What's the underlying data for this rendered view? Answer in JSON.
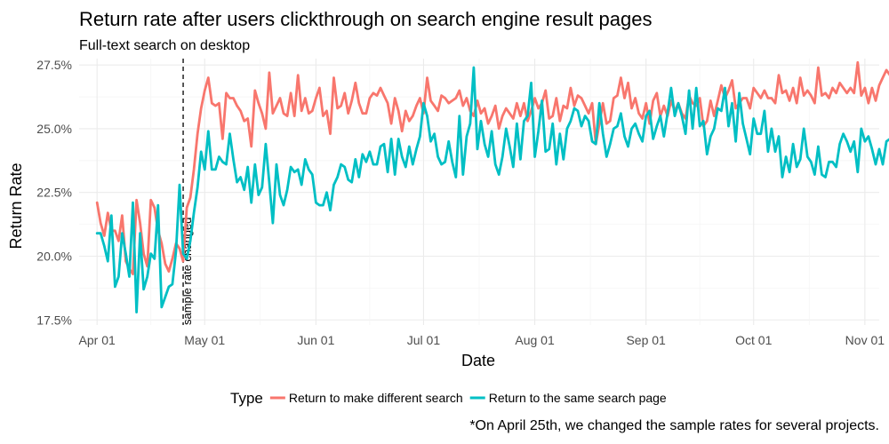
{
  "chart_data": {
    "type": "line",
    "title": "Return rate after users clickthrough on search engine result pages",
    "subtitle": "Full-text search on desktop",
    "xlabel": "Date",
    "ylabel": "Return Rate",
    "x_ticks": [
      "Apr 01",
      "May 01",
      "Jun 01",
      "Jul 01",
      "Aug 01",
      "Sep 01",
      "Oct 01",
      "Nov 01"
    ],
    "y_ticks": [
      "17.5%",
      "20.0%",
      "22.5%",
      "25.0%",
      "27.5%"
    ],
    "xlim": [
      "2017-03-27",
      "2017-11-05"
    ],
    "ylim": [
      0.173,
      0.2775
    ],
    "grid": true,
    "legend": {
      "title": "Type",
      "position": "bottom"
    },
    "annotation": {
      "date": "2017-04-25",
      "label": "sample rate changed",
      "style": "dashed vertical line"
    },
    "caption": "*On April 25th, we changed the sample rates for several projects.",
    "start_date": "2017-04-01",
    "series": [
      {
        "name": "Return to make different search",
        "color": "#F8766D",
        "values": [
          0.221,
          0.213,
          0.208,
          0.217,
          0.21,
          0.21,
          0.206,
          0.216,
          0.198,
          0.195,
          0.193,
          0.222,
          0.213,
          0.201,
          0.196,
          0.222,
          0.219,
          0.21,
          0.205,
          0.197,
          0.194,
          0.199,
          0.205,
          0.203,
          0.198,
          0.219,
          0.223,
          0.234,
          0.248,
          0.258,
          0.265,
          0.27,
          0.26,
          0.259,
          0.26,
          0.246,
          0.264,
          0.262,
          0.262,
          0.259,
          0.257,
          0.253,
          0.254,
          0.243,
          0.265,
          0.26,
          0.256,
          0.25,
          0.272,
          0.256,
          0.259,
          0.262,
          0.256,
          0.255,
          0.264,
          0.255,
          0.271,
          0.257,
          0.262,
          0.256,
          0.257,
          0.262,
          0.266,
          0.255,
          0.257,
          0.248,
          0.27,
          0.258,
          0.259,
          0.264,
          0.256,
          0.261,
          0.268,
          0.26,
          0.256,
          0.256,
          0.262,
          0.264,
          0.263,
          0.266,
          0.263,
          0.26,
          0.252,
          0.262,
          0.257,
          0.249,
          0.257,
          0.253,
          0.255,
          0.259,
          0.262,
          0.256,
          0.27,
          0.261,
          0.259,
          0.257,
          0.263,
          0.262,
          0.26,
          0.261,
          0.262,
          0.265,
          0.259,
          0.262,
          0.257,
          0.255,
          0.261,
          0.256,
          0.258,
          0.252,
          0.255,
          0.259,
          0.25,
          0.255,
          0.258,
          0.256,
          0.254,
          0.26,
          0.255,
          0.26,
          0.253,
          0.257,
          0.262,
          0.258,
          0.26,
          0.265,
          0.254,
          0.255,
          0.262,
          0.253,
          0.259,
          0.258,
          0.266,
          0.259,
          0.263,
          0.262,
          0.259,
          0.256,
          0.26,
          0.244,
          0.252,
          0.26,
          0.252,
          0.253,
          0.262,
          0.263,
          0.27,
          0.262,
          0.268,
          0.258,
          0.262,
          0.256,
          0.254,
          0.26,
          0.252,
          0.261,
          0.264,
          0.255,
          0.259,
          0.255,
          0.261,
          0.257,
          0.26,
          0.256,
          0.254,
          0.263,
          0.26,
          0.259,
          0.262,
          0.251,
          0.253,
          0.261,
          0.255,
          0.261,
          0.267,
          0.262,
          0.265,
          0.269,
          0.258,
          0.26,
          0.262,
          0.262,
          0.258,
          0.266,
          0.264,
          0.262,
          0.265,
          0.262,
          0.262,
          0.26,
          0.271,
          0.264,
          0.265,
          0.261,
          0.266,
          0.26,
          0.27,
          0.263,
          0.265,
          0.263,
          0.26,
          0.274,
          0.263,
          0.264,
          0.262,
          0.266,
          0.264,
          0.268,
          0.266,
          0.264,
          0.266,
          0.264,
          0.276,
          0.263,
          0.266,
          0.26,
          0.266,
          0.261,
          0.267,
          0.27,
          0.273,
          0.271,
          0.272,
          0.273,
          0.269,
          0.274,
          0.271,
          0.278,
          0.274,
          0.268,
          0.275,
          0.275,
          0.272,
          0.282,
          0.282,
          0.269,
          0.261,
          0.271,
          0.269
        ]
      },
      {
        "name": "Return to the same search page",
        "color": "#00BFC4",
        "values": [
          0.209,
          0.209,
          0.204,
          0.198,
          0.216,
          0.188,
          0.192,
          0.209,
          0.201,
          0.192,
          0.221,
          0.178,
          0.209,
          0.187,
          0.192,
          0.201,
          0.199,
          0.22,
          0.18,
          0.184,
          0.188,
          0.189,
          0.202,
          0.228,
          0.201,
          0.199,
          0.206,
          0.217,
          0.227,
          0.241,
          0.234,
          0.249,
          0.234,
          0.234,
          0.239,
          0.237,
          0.236,
          0.248,
          0.238,
          0.229,
          0.231,
          0.226,
          0.235,
          0.221,
          0.236,
          0.224,
          0.227,
          0.244,
          0.229,
          0.213,
          0.236,
          0.224,
          0.22,
          0.226,
          0.235,
          0.233,
          0.234,
          0.228,
          0.238,
          0.234,
          0.232,
          0.221,
          0.22,
          0.22,
          0.225,
          0.218,
          0.228,
          0.231,
          0.236,
          0.235,
          0.23,
          0.229,
          0.238,
          0.231,
          0.24,
          0.237,
          0.241,
          0.236,
          0.236,
          0.243,
          0.244,
          0.233,
          0.246,
          0.232,
          0.246,
          0.239,
          0.235,
          0.243,
          0.236,
          0.242,
          0.247,
          0.26,
          0.255,
          0.245,
          0.248,
          0.239,
          0.236,
          0.237,
          0.245,
          0.237,
          0.231,
          0.255,
          0.232,
          0.247,
          0.252,
          0.274,
          0.242,
          0.253,
          0.244,
          0.239,
          0.249,
          0.236,
          0.232,
          0.239,
          0.25,
          0.243,
          0.235,
          0.252,
          0.238,
          0.253,
          0.255,
          0.268,
          0.239,
          0.249,
          0.261,
          0.241,
          0.242,
          0.252,
          0.236,
          0.248,
          0.238,
          0.25,
          0.253,
          0.258,
          0.257,
          0.251,
          0.255,
          0.253,
          0.245,
          0.244,
          0.26,
          0.248,
          0.239,
          0.244,
          0.25,
          0.251,
          0.256,
          0.247,
          0.243,
          0.25,
          0.252,
          0.248,
          0.245,
          0.255,
          0.257,
          0.246,
          0.251,
          0.255,
          0.247,
          0.256,
          0.266,
          0.255,
          0.26,
          0.255,
          0.248,
          0.265,
          0.25,
          0.266,
          0.251,
          0.253,
          0.24,
          0.247,
          0.25,
          0.258,
          0.257,
          0.266,
          0.251,
          0.26,
          0.245,
          0.264,
          0.252,
          0.246,
          0.24,
          0.254,
          0.248,
          0.248,
          0.257,
          0.241,
          0.25,
          0.241,
          0.247,
          0.231,
          0.239,
          0.233,
          0.244,
          0.235,
          0.238,
          0.25,
          0.239,
          0.237,
          0.232,
          0.243,
          0.232,
          0.231,
          0.237,
          0.237,
          0.235,
          0.244,
          0.248,
          0.245,
          0.241,
          0.245,
          0.233,
          0.25,
          0.245,
          0.247,
          0.242,
          0.236,
          0.242,
          0.236,
          0.245,
          0.246,
          0.24,
          0.243,
          0.239,
          0.231,
          0.244,
          0.236,
          0.237,
          0.235,
          0.238,
          0.247,
          0.248,
          0.243,
          0.244,
          0.247,
          0.241,
          0.245,
          0.258,
          0.245,
          0.248,
          0.246,
          0.248,
          0.252
        ]
      }
    ]
  }
}
